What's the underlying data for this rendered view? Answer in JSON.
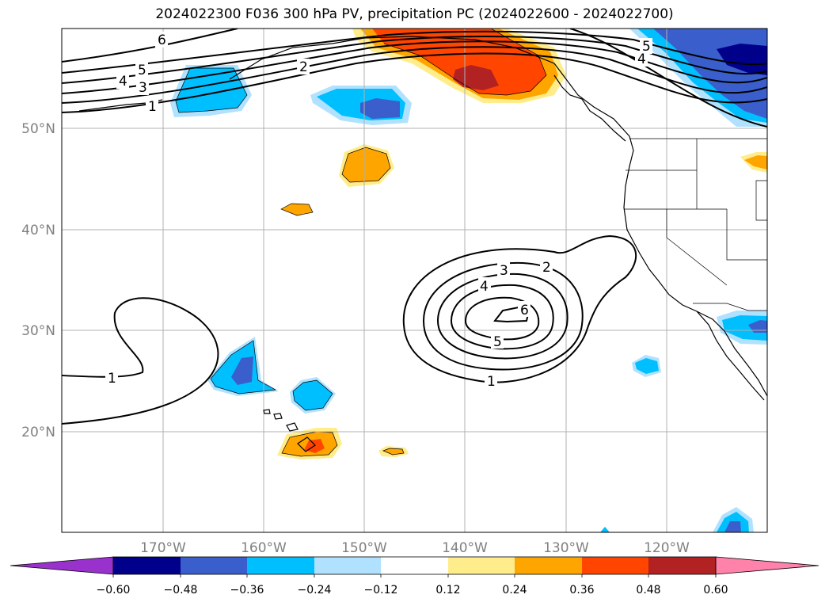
{
  "title": "2024022300 F036 300 hPa PV, precipitation PC (2024022600 - 2024022700)",
  "lat_labels": [
    "50°N",
    "40°N",
    "30°N",
    "20°N"
  ],
  "lon_labels": [
    "170°W",
    "160°W",
    "150°W",
    "140°W",
    "130°W",
    "120°W"
  ],
  "contour_labels": {
    "north": [
      "6",
      "5",
      "4",
      "3",
      "1",
      "2",
      "5",
      "4"
    ],
    "low": [
      "3",
      "2",
      "4",
      "6",
      "5",
      "1"
    ],
    "west": [
      "1"
    ]
  },
  "colorbar": {
    "ticks": [
      "−0.60",
      "−0.48",
      "−0.36",
      "−0.24",
      "−0.12",
      "0.12",
      "0.24",
      "0.36",
      "0.48",
      "0.60"
    ],
    "colors": [
      "#9932cc",
      "#00008b",
      "#3a5fcd",
      "#00bfff",
      "#b0e2ff",
      "#ffffff",
      "#ffec8b",
      "#ffa500",
      "#ff4500",
      "#b22222",
      "#ff82ab"
    ]
  },
  "colors": {
    "coast": "#000000",
    "grid": "#b0b0b0",
    "pos_light": "#ffec8b",
    "pos_mid": "#ffa500",
    "pos_strong": "#ff4500",
    "pos_max": "#b22222",
    "neg_light": "#b0e2ff",
    "neg_mid": "#00bfff",
    "neg_strong": "#3a5fcd",
    "neg_max": "#00008b"
  }
}
